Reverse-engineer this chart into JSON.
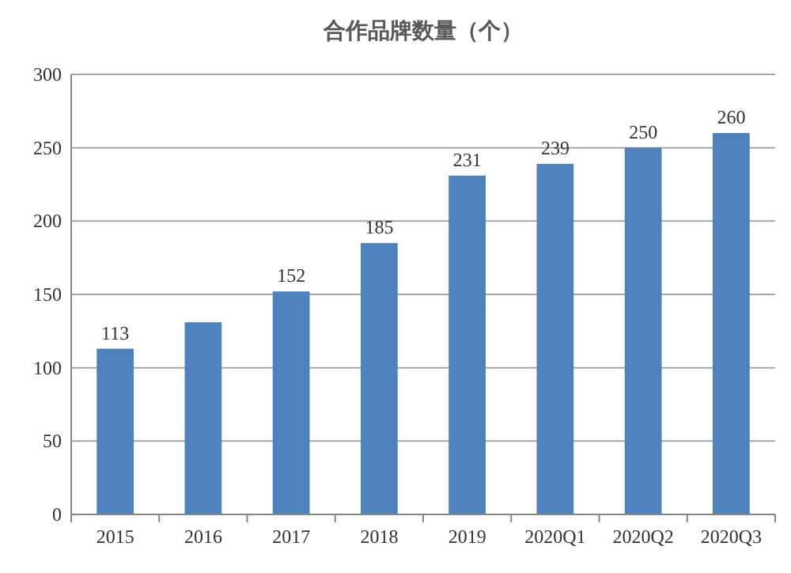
{
  "chart_data": {
    "type": "bar",
    "title": "合作品牌数量（个）",
    "categories": [
      "2015",
      "2016",
      "2017",
      "2018",
      "2019",
      "2020Q1",
      "2020Q2",
      "2020Q3"
    ],
    "values": [
      113,
      131,
      152,
      185,
      231,
      239,
      250,
      260
    ],
    "value_labels": [
      "113",
      null,
      "152",
      "185",
      "231",
      "239",
      "250",
      "260"
    ],
    "color": "#4f81bd",
    "ylim": [
      0,
      300
    ],
    "yticks": [
      0,
      50,
      100,
      150,
      200,
      250,
      300
    ],
    "grid": "y"
  }
}
